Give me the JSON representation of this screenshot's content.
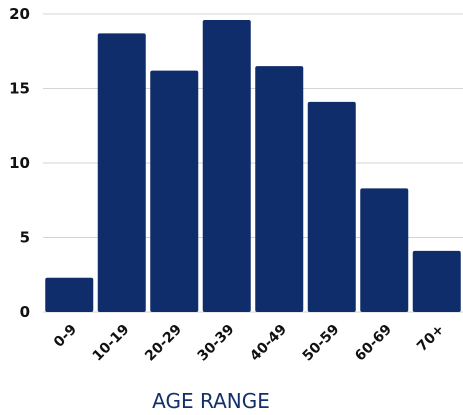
{
  "chart_data": {
    "type": "bar",
    "categories": [
      "0-9",
      "10-19",
      "20-29",
      "30-39",
      "40-49",
      "50-59",
      "60-69",
      "70+"
    ],
    "values": [
      2.3,
      18.7,
      16.2,
      19.6,
      16.5,
      14.1,
      8.3,
      4.1
    ],
    "ylim": [
      0,
      20
    ],
    "yticks": [
      "0",
      "5",
      "10",
      "15",
      "20"
    ],
    "xlabel": "AGE RANGE",
    "ylabel": "",
    "title": "",
    "grid": true,
    "legend": "none",
    "bar_color": "#0f2d6b",
    "xlabel_color": "#14306b"
  }
}
